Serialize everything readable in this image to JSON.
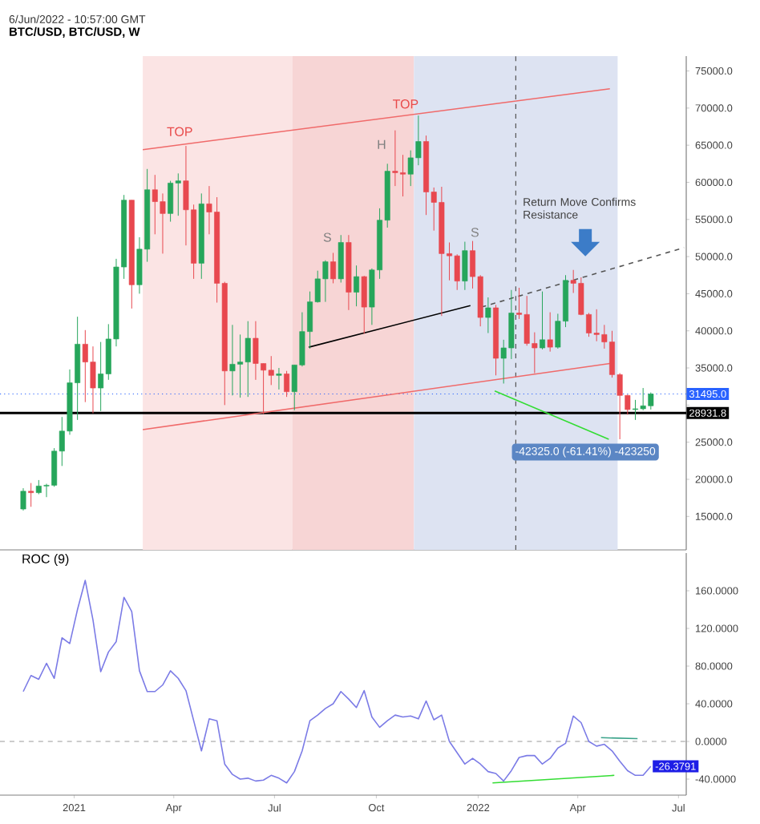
{
  "chart_data": [
    {
      "type": "candlestick",
      "title": "BTC/USD, BTC/USD, W",
      "x": [
        "2020-11-16",
        "2020-11-23",
        "2020-11-30",
        "2020-12-07",
        "2020-12-14",
        "2020-12-21",
        "2020-12-28",
        "2021-01-04",
        "2021-01-11",
        "2021-01-18",
        "2021-01-25",
        "2021-02-01",
        "2021-02-08",
        "2021-02-15",
        "2021-02-22",
        "2021-03-01",
        "2021-03-08",
        "2021-03-15",
        "2021-03-22",
        "2021-03-29",
        "2021-04-05",
        "2021-04-12",
        "2021-04-19",
        "2021-04-26",
        "2021-05-03",
        "2021-05-10",
        "2021-05-17",
        "2021-05-24",
        "2021-05-31",
        "2021-06-07",
        "2021-06-14",
        "2021-06-21",
        "2021-06-28",
        "2021-07-05",
        "2021-07-12",
        "2021-07-19",
        "2021-07-26",
        "2021-08-02",
        "2021-08-09",
        "2021-08-16",
        "2021-08-23",
        "2021-08-30",
        "2021-09-06",
        "2021-09-13",
        "2021-09-20",
        "2021-09-27",
        "2021-10-04",
        "2021-10-11",
        "2021-10-18",
        "2021-10-25",
        "2021-11-01",
        "2021-11-08",
        "2021-11-15",
        "2021-11-22",
        "2021-11-29",
        "2021-12-06",
        "2021-12-13",
        "2021-12-20",
        "2021-12-27",
        "2022-01-03",
        "2022-01-10",
        "2022-01-17",
        "2022-01-24",
        "2022-01-31",
        "2022-02-07",
        "2022-02-14",
        "2022-02-21",
        "2022-02-28",
        "2022-03-07",
        "2022-03-14",
        "2022-03-21",
        "2022-03-28",
        "2022-04-04",
        "2022-04-11",
        "2022-04-18",
        "2022-04-25",
        "2022-05-02",
        "2022-05-09",
        "2022-05-16",
        "2022-05-23",
        "2022-05-30",
        "2022-06-06"
      ],
      "ohlc": [
        [
          16000,
          18800,
          15800,
          18400
        ],
        [
          18400,
          19500,
          16300,
          18200
        ],
        [
          18200,
          19900,
          18000,
          19100
        ],
        [
          19100,
          19400,
          17600,
          19200
        ],
        [
          19200,
          24200,
          19000,
          23800
        ],
        [
          23800,
          28400,
          21800,
          26500
        ],
        [
          26500,
          34800,
          26000,
          33000
        ],
        [
          33000,
          41900,
          28000,
          38200
        ],
        [
          38200,
          40100,
          30400,
          35800
        ],
        [
          35800,
          37900,
          28900,
          32300
        ],
        [
          32300,
          38500,
          29200,
          34200
        ],
        [
          34200,
          40900,
          33400,
          38900
        ],
        [
          38900,
          49700,
          37900,
          48600
        ],
        [
          48600,
          58300,
          47000,
          57600
        ],
        [
          57600,
          57600,
          43000,
          46200
        ],
        [
          46200,
          52600,
          45000,
          51000
        ],
        [
          51000,
          61800,
          49300,
          59000
        ],
        [
          59000,
          61000,
          53000,
          57400
        ],
        [
          57400,
          58500,
          50400,
          55800
        ],
        [
          55800,
          60200,
          54700,
          59900
        ],
        [
          59900,
          61200,
          55500,
          60200
        ],
        [
          60200,
          64900,
          51500,
          56300
        ],
        [
          56300,
          57000,
          47000,
          49100
        ],
        [
          49100,
          58500,
          47000,
          57100
        ],
        [
          57100,
          59500,
          53000,
          56000
        ],
        [
          56000,
          58000,
          43800,
          46400
        ],
        [
          46400,
          46600,
          30000,
          34600
        ],
        [
          34600,
          40800,
          31300,
          35500
        ],
        [
          35500,
          39500,
          31000,
          35800
        ],
        [
          35800,
          41300,
          31100,
          39000
        ],
        [
          39000,
          41300,
          33400,
          35600
        ],
        [
          35600,
          35600,
          28800,
          34700
        ],
        [
          34700,
          36600,
          32700,
          34000
        ],
        [
          34000,
          35000,
          32100,
          34200
        ],
        [
          34200,
          34600,
          31100,
          31800
        ],
        [
          31800,
          35400,
          29300,
          35400
        ],
        [
          35400,
          42500,
          35200,
          39900
        ],
        [
          39900,
          45300,
          37600,
          43900
        ],
        [
          43900,
          48100,
          43800,
          47000
        ],
        [
          47000,
          49500,
          43900,
          49300
        ],
        [
          49300,
          50500,
          46400,
          47000
        ],
        [
          47000,
          52900,
          46500,
          51900
        ],
        [
          51900,
          52900,
          42800,
          45200
        ],
        [
          45200,
          48800,
          43300,
          47300
        ],
        [
          47300,
          47400,
          39600,
          43200
        ],
        [
          43200,
          48400,
          40800,
          48200
        ],
        [
          48200,
          56500,
          47000,
          54900
        ],
        [
          54900,
          62500,
          53900,
          61500
        ],
        [
          61500,
          67000,
          59500,
          61300
        ],
        [
          61300,
          63700,
          58100,
          61100
        ],
        [
          61100,
          64300,
          59500,
          63300
        ],
        [
          63300,
          69000,
          62300,
          65500
        ],
        [
          65500,
          66300,
          55600,
          58700
        ],
        [
          58700,
          59300,
          53500,
          57300
        ],
        [
          57300,
          59400,
          42000,
          50400
        ],
        [
          50400,
          51900,
          46800,
          50100
        ],
        [
          50100,
          50300,
          45500,
          46700
        ],
        [
          46700,
          52000,
          45500,
          50800
        ],
        [
          50800,
          52100,
          45700,
          47300
        ],
        [
          47300,
          47500,
          40600,
          41800
        ],
        [
          41800,
          44500,
          39700,
          43100
        ],
        [
          43100,
          43500,
          34000,
          36300
        ],
        [
          36300,
          38800,
          32900,
          37700
        ],
        [
          37700,
          45500,
          36200,
          42400
        ],
        [
          42400,
          45800,
          41600,
          42200
        ],
        [
          42200,
          44700,
          38000,
          38300
        ],
        [
          38300,
          39800,
          34300,
          37700
        ],
        [
          37700,
          45300,
          37500,
          38800
        ],
        [
          38800,
          42500,
          37200,
          37800
        ],
        [
          37800,
          42300,
          37600,
          41300
        ],
        [
          41300,
          47500,
          40500,
          46800
        ],
        [
          46800,
          48200,
          45100,
          46400
        ],
        [
          46400,
          47200,
          42100,
          42200
        ],
        [
          42200,
          42400,
          39200,
          39700
        ],
        [
          39700,
          42900,
          38600,
          39500
        ],
        [
          39500,
          40800,
          37600,
          38500
        ],
        [
          38500,
          40000,
          33700,
          34100
        ],
        [
          34100,
          34300,
          25400,
          31300
        ],
        [
          31300,
          31400,
          28700,
          29400
        ],
        [
          29400,
          30700,
          28000,
          29500
        ],
        [
          29500,
          32300,
          29300,
          29900
        ],
        [
          29900,
          31700,
          29400,
          31495
        ]
      ],
      "colors": [
        "#26a65b",
        "#e8484f",
        "#26a65b",
        "#26a65b",
        "#26a65b",
        "#26a65b",
        "#26a65b",
        "#26a65b",
        "#e8484f",
        "#e8484f",
        "#26a65b",
        "#26a65b",
        "#26a65b",
        "#26a65b",
        "#e8484f",
        "#26a65b",
        "#26a65b",
        "#e8484f",
        "#e8484f",
        "#26a65b",
        "#26a65b",
        "#e8484f",
        "#e8484f",
        "#26a65b",
        "#e8484f",
        "#e8484f",
        "#e8484f",
        "#26a65b",
        "#26a65b",
        "#26a65b",
        "#e8484f",
        "#e8484f",
        "#e8484f",
        "#26a65b",
        "#e8484f",
        "#26a65b",
        "#26a65b",
        "#26a65b",
        "#26a65b",
        "#26a65b",
        "#e8484f",
        "#26a65b",
        "#e8484f",
        "#26a65b",
        "#e8484f",
        "#26a65b",
        "#26a65b",
        "#26a65b",
        "#e8484f",
        "#e8484f",
        "#26a65b",
        "#26a65b",
        "#e8484f",
        "#e8484f",
        "#e8484f",
        "#e8484f",
        "#e8484f",
        "#26a65b",
        "#e8484f",
        "#e8484f",
        "#26a65b",
        "#e8484f",
        "#26a65b",
        "#26a65b",
        "#e8484f",
        "#e8484f",
        "#e8484f",
        "#26a65b",
        "#e8484f",
        "#26a65b",
        "#26a65b",
        "#e8484f",
        "#e8484f",
        "#e8484f",
        "#e8484f",
        "#e8484f",
        "#e8484f",
        "#e8484f",
        "#e8484f",
        "#26a65b",
        "#26a65b",
        "#26a65b"
      ],
      "series": [
        {
          "type": "line",
          "x": [
            "2021-03-04",
            "2022-04-30"
          ],
          "values": [
            64400,
            72600
          ],
          "color": "#f06a6a"
        },
        {
          "type": "line",
          "x": [
            "2021-03-04",
            "2022-04-30"
          ],
          "values": [
            26700,
            35600
          ],
          "color": "#f06a6a"
        },
        {
          "type": "line",
          "x": [
            "2021-08-01",
            "2021-12-25"
          ],
          "values": [
            37800,
            43400
          ],
          "color": "#000000"
        },
        {
          "type": "line",
          "x": [
            "2022-01-04",
            "2022-07-06"
          ],
          "values": [
            43200,
            51200
          ],
          "color": "#555555",
          "line_style": "dashed"
        },
        {
          "type": "line",
          "x": [
            "2022-01-16",
            "2022-04-29"
          ],
          "values": [
            31900,
            25400
          ],
          "color": "#33dd33"
        }
      ],
      "xlim": [
        "2020-10-26",
        "2022-07-08"
      ],
      "ylim": [
        10500,
        77000
      ],
      "yticks": [
        {
          "value": 15000,
          "label": "15000.0"
        },
        {
          "value": 20000,
          "label": "20000.0"
        },
        {
          "value": 25000,
          "label": "25000.0"
        },
        {
          "value": 30000,
          "label": null
        },
        {
          "value": 35000,
          "label": "35000.0"
        },
        {
          "value": 40000,
          "label": "40000.0"
        },
        {
          "value": 45000,
          "label": "45000.0"
        },
        {
          "value": 50000,
          "label": "50000.0"
        },
        {
          "value": 55000,
          "label": "55000.0"
        },
        {
          "value": 60000,
          "label": "60000.0"
        },
        {
          "value": 65000,
          "label": "65000.0"
        },
        {
          "value": 70000,
          "label": "70000.0"
        },
        {
          "value": 75000,
          "label": "75000.0"
        }
      ],
      "tick_labels": "y",
      "bands": [
        {
          "axis": "x",
          "from": "2021-03-04",
          "to": "2021-07-17",
          "color": "#fbe4e4"
        },
        {
          "axis": "x",
          "from": "2021-07-17",
          "to": "2021-11-04",
          "color": "#f7d5d5"
        },
        {
          "axis": "x",
          "from": "2021-11-04",
          "to": "2022-05-07",
          "color": "#dde3f2"
        }
      ],
      "ref_lines": [
        {
          "axis": "x",
          "value": "2022-02-04",
          "color": "#555555",
          "line_style": "dashed"
        },
        {
          "axis": "y",
          "value": 31495,
          "label": "31495.0",
          "color": "#2962ff",
          "line_style": "dotted"
        },
        {
          "axis": "y",
          "value": 28931.8,
          "label": "28931.8",
          "color": "#000000",
          "line_style": "solid"
        }
      ],
      "annotations": [
        "6/Jun/2022 - 10:57:00 GMT",
        "TOP",
        "TOP",
        "H",
        "S",
        "S",
        "Return Move Confirms Resistance",
        "-42325.0 (-61.41%) -423250"
      ]
    },
    {
      "type": "line",
      "title": "ROC (9)",
      "x": [
        "2020-11-16",
        "2020-11-23",
        "2020-11-30",
        "2020-12-07",
        "2020-12-14",
        "2020-12-21",
        "2020-12-28",
        "2021-01-04",
        "2021-01-11",
        "2021-01-18",
        "2021-01-25",
        "2021-02-01",
        "2021-02-08",
        "2021-02-15",
        "2021-02-22",
        "2021-03-01",
        "2021-03-08",
        "2021-03-15",
        "2021-03-22",
        "2021-03-29",
        "2021-04-05",
        "2021-04-12",
        "2021-04-19",
        "2021-04-26",
        "2021-05-03",
        "2021-05-10",
        "2021-05-17",
        "2021-05-24",
        "2021-05-31",
        "2021-06-07",
        "2021-06-14",
        "2021-06-21",
        "2021-06-28",
        "2021-07-05",
        "2021-07-12",
        "2021-07-19",
        "2021-07-26",
        "2021-08-02",
        "2021-08-09",
        "2021-08-16",
        "2021-08-23",
        "2021-08-30",
        "2021-09-06",
        "2021-09-13",
        "2021-09-20",
        "2021-09-27",
        "2021-10-04",
        "2021-10-11",
        "2021-10-18",
        "2021-10-25",
        "2021-11-01",
        "2021-11-08",
        "2021-11-15",
        "2021-11-22",
        "2021-11-29",
        "2021-12-06",
        "2021-12-13",
        "2021-12-20",
        "2021-12-27",
        "2022-01-03",
        "2022-01-10",
        "2022-01-17",
        "2022-01-24",
        "2022-01-31",
        "2022-02-07",
        "2022-02-14",
        "2022-02-21",
        "2022-02-28",
        "2022-03-07",
        "2022-03-14",
        "2022-03-21",
        "2022-03-28",
        "2022-04-04",
        "2022-04-11",
        "2022-04-18",
        "2022-04-25",
        "2022-05-02",
        "2022-05-09",
        "2022-05-16",
        "2022-05-23",
        "2022-05-30",
        "2022-06-06"
      ],
      "series": [
        {
          "values": [
            53,
            70,
            66,
            83,
            67,
            110,
            104,
            140,
            171,
            129,
            74,
            95,
            106,
            153,
            138,
            75,
            53,
            53,
            60,
            75,
            67,
            54,
            22,
            -10,
            24,
            22,
            -24,
            -35,
            -40,
            -39,
            -42,
            -41,
            -36,
            -39,
            -44,
            -32,
            -10,
            22,
            28,
            35,
            40,
            53,
            45,
            36,
            54,
            26,
            15,
            22,
            28,
            26,
            27,
            24,
            43,
            23,
            28,
            0,
            -12,
            -24,
            -18,
            -24,
            -32,
            -34,
            -42,
            -31,
            -17,
            -15,
            -15,
            -24,
            -18,
            -7,
            -2,
            27,
            20,
            0,
            -5,
            -3,
            -10,
            -21,
            -31,
            -36,
            -36,
            -26.3791
          ],
          "color": "#7b7be6",
          "value_labels": [
            null,
            null,
            null,
            null,
            null,
            null,
            null,
            null,
            null,
            null,
            null,
            null,
            null,
            null,
            null,
            null,
            null,
            null,
            null,
            null,
            null,
            null,
            null,
            null,
            null,
            null,
            null,
            null,
            null,
            null,
            null,
            null,
            null,
            null,
            null,
            null,
            null,
            null,
            null,
            null,
            null,
            null,
            null,
            null,
            null,
            null,
            null,
            null,
            null,
            null,
            null,
            null,
            null,
            null,
            null,
            null,
            null,
            null,
            null,
            null,
            null,
            null,
            null,
            null,
            null,
            null,
            null,
            null,
            null,
            null,
            null,
            null,
            null,
            null,
            null,
            null,
            null,
            null,
            null,
            null,
            null,
            "-26.3791"
          ]
        },
        {
          "x": [
            "2022-01-14",
            "2022-05-04"
          ],
          "values": [
            -44,
            -36
          ],
          "color": "#33dd33"
        },
        {
          "x": [
            "2022-04-22",
            "2022-05-25"
          ],
          "values": [
            4,
            3
          ],
          "color": "#3aa38a"
        }
      ],
      "xlim": [
        "2020-10-26",
        "2022-07-08"
      ],
      "ylim": [
        -57,
        200
      ],
      "xticks": [
        {
          "value": "2021-01-01",
          "label": "2021"
        },
        {
          "value": "2021-04-01",
          "label": "Apr"
        },
        {
          "value": "2021-07-01",
          "label": "Jul"
        },
        {
          "value": "2021-10-01",
          "label": "Oct"
        },
        {
          "value": "2022-01-01",
          "label": "2022"
        },
        {
          "value": "2022-04-01",
          "label": "Apr"
        },
        {
          "value": "2022-07-01",
          "label": "Jul"
        }
      ],
      "yticks": [
        {
          "value": -40,
          "label": "-40.0000"
        },
        {
          "value": 0,
          "label": "0.0000"
        },
        {
          "value": 40,
          "label": "40.0000"
        },
        {
          "value": 80,
          "label": "80.0000"
        },
        {
          "value": 120,
          "label": "120.0000"
        },
        {
          "value": 160,
          "label": "160.0000"
        }
      ],
      "ref_lines": [
        {
          "axis": "y",
          "value": 0,
          "color": "#999999",
          "line_style": "dashed"
        }
      ]
    }
  ]
}
